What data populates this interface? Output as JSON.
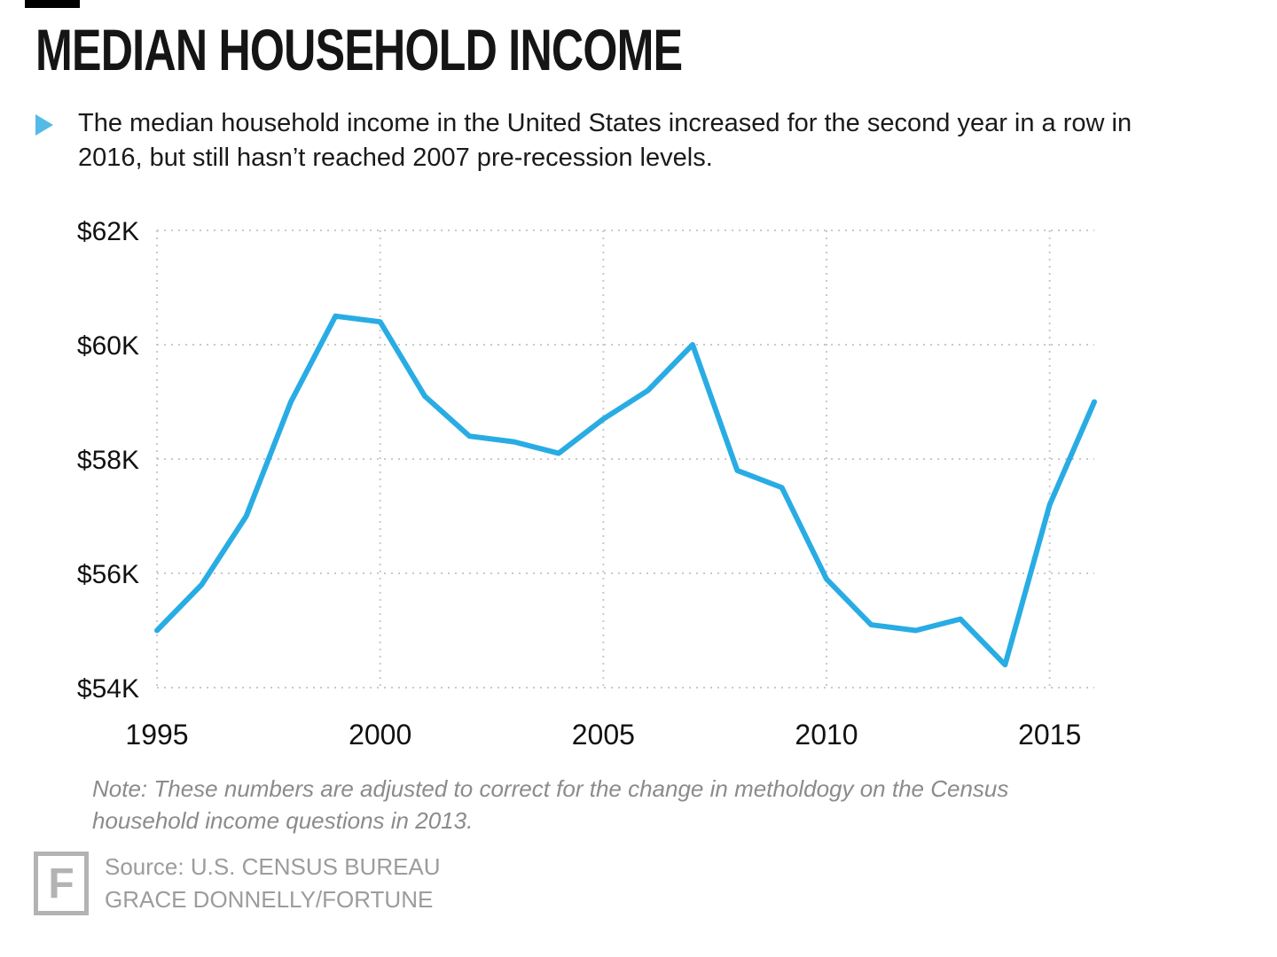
{
  "page": {
    "title": "MEDIAN HOUSEHOLD INCOME",
    "subtitle": "The median household income in the United States increased for the second year in a row in 2016, but still hasn’t reached 2007 pre-recession levels.",
    "note": "Note: These numbers are adjusted to correct for the change in metholdogy on the Census household income questions in 2013.",
    "source_line1": "Source: U.S. CENSUS BUREAU",
    "source_line2": "GRACE DONNELLY/FORTUNE",
    "logo_letter": "F"
  },
  "colors": {
    "line": "#29ace4",
    "bullet": "#54bbe6",
    "grid": "#c9c9c9",
    "axis_text": "#111111",
    "muted": "#9c9c9c"
  },
  "chart_data": {
    "type": "line",
    "title": "MEDIAN HOUSEHOLD INCOME",
    "x": [
      1995,
      1996,
      1997,
      1998,
      1999,
      2000,
      2001,
      2002,
      2003,
      2004,
      2005,
      2006,
      2007,
      2008,
      2009,
      2010,
      2011,
      2012,
      2013,
      2014,
      2015,
      2016
    ],
    "values": [
      55.0,
      55.8,
      57.0,
      59.0,
      60.5,
      60.4,
      59.1,
      58.4,
      58.3,
      58.1,
      58.7,
      59.2,
      60.0,
      57.8,
      57.5,
      55.9,
      55.1,
      55.0,
      55.2,
      54.4,
      57.2,
      59.0
    ],
    "values_unit": "thousand USD",
    "ylim": [
      54,
      62
    ],
    "yticks": [
      54,
      56,
      58,
      60,
      62
    ],
    "ytick_labels": [
      "$54K",
      "$56K",
      "$58K",
      "$60K",
      "$62K"
    ],
    "xticks": [
      1995,
      2000,
      2005,
      2010,
      2015
    ],
    "xtick_labels": [
      "1995",
      "2000",
      "2005",
      "2010",
      "2015"
    ],
    "grid": "dotted",
    "legend": "none",
    "xlabel": "",
    "ylabel": ""
  }
}
